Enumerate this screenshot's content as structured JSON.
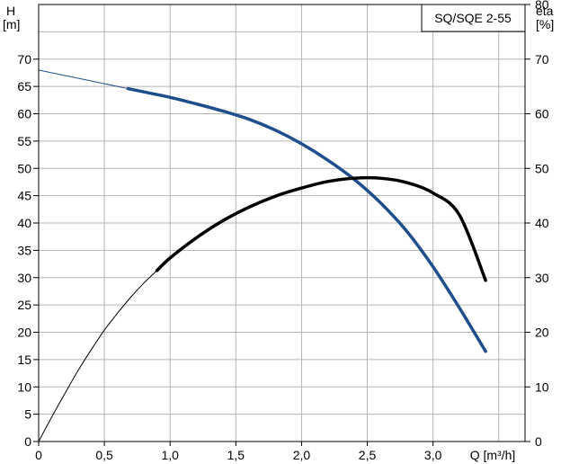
{
  "chart_data": {
    "type": "line",
    "title": "SQ/SQE 2-55",
    "left_axis": {
      "label_line1": "H",
      "label_line2": "[m]",
      "ylim": [
        0,
        80
      ],
      "ticks": [
        0,
        5,
        10,
        15,
        20,
        25,
        30,
        35,
        40,
        45,
        50,
        55,
        60,
        65,
        70
      ]
    },
    "right_axis": {
      "label_line1": "eta",
      "label_line2": "[%]",
      "ylim": [
        0,
        80
      ],
      "ticks": [
        0,
        10,
        20,
        30,
        40,
        50,
        60,
        70,
        80
      ]
    },
    "x_axis": {
      "label": "Q [m³/h]",
      "xlim": [
        0,
        3.7
      ],
      "ticks": [
        {
          "value": 0,
          "label": "0"
        },
        {
          "value": 0.5,
          "label": "0,5"
        },
        {
          "value": 1.0,
          "label": "1,0"
        },
        {
          "value": 1.5,
          "label": "1,5"
        },
        {
          "value": 2.0,
          "label": "2,0"
        },
        {
          "value": 2.5,
          "label": "2,5"
        },
        {
          "value": 3.0,
          "label": "3,0"
        }
      ]
    },
    "grid": true,
    "series": [
      {
        "id": "head",
        "color": "#1f4e8c",
        "axis": "left",
        "thin_until_x": 0.68,
        "points": [
          [
            0,
            68.0
          ],
          [
            0.2,
            67.0
          ],
          [
            0.4,
            66.0
          ],
          [
            0.6,
            65.0
          ],
          [
            0.8,
            64.0
          ],
          [
            1.0,
            63.0
          ],
          [
            1.2,
            61.8
          ],
          [
            1.4,
            60.5
          ],
          [
            1.6,
            59.0
          ],
          [
            1.8,
            57.0
          ],
          [
            2.0,
            54.5
          ],
          [
            2.2,
            51.5
          ],
          [
            2.4,
            48.0
          ],
          [
            2.6,
            43.7
          ],
          [
            2.8,
            38.5
          ],
          [
            3.0,
            32.0
          ],
          [
            3.2,
            24.5
          ],
          [
            3.4,
            16.5
          ]
        ]
      },
      {
        "id": "efficiency",
        "color": "#000000",
        "axis": "right",
        "thin_until_x": 0.9,
        "points": [
          [
            0,
            0
          ],
          [
            0.1,
            4.5
          ],
          [
            0.2,
            8.8
          ],
          [
            0.3,
            13.0
          ],
          [
            0.4,
            16.8
          ],
          [
            0.5,
            20.4
          ],
          [
            0.6,
            23.5
          ],
          [
            0.7,
            26.4
          ],
          [
            0.8,
            29.0
          ],
          [
            1.0,
            33.6
          ],
          [
            1.2,
            37.3
          ],
          [
            1.4,
            40.4
          ],
          [
            1.6,
            42.9
          ],
          [
            1.8,
            44.9
          ],
          [
            2.0,
            46.4
          ],
          [
            2.2,
            47.6
          ],
          [
            2.4,
            48.2
          ],
          [
            2.6,
            48.2
          ],
          [
            2.8,
            47.4
          ],
          [
            3.0,
            45.5
          ],
          [
            3.2,
            41.5
          ],
          [
            3.4,
            29.5
          ]
        ]
      }
    ]
  }
}
